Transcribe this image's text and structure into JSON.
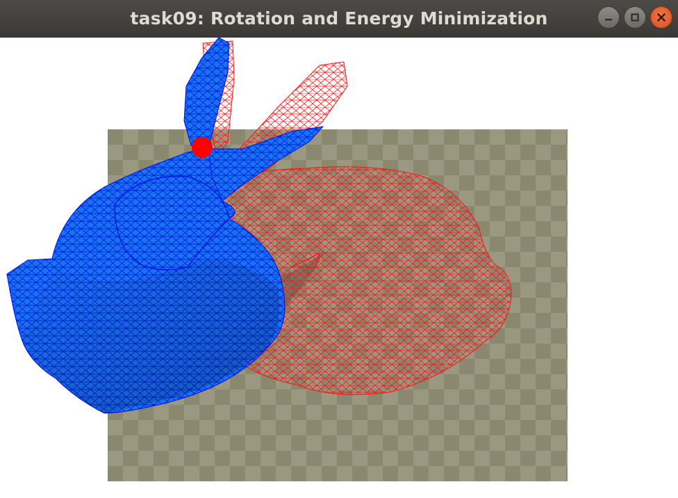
{
  "window": {
    "title": "task09: Rotation and Energy Minimization",
    "controls": {
      "minimize_icon": "minimize-icon",
      "maximize_icon": "maximize-icon",
      "close_icon": "close-icon"
    }
  },
  "scene": {
    "background_color": "#ffffff",
    "floor_colors": [
      "#9a9880",
      "#8a886f"
    ],
    "solid_mesh": {
      "fill": "#1873ee",
      "edge": "#0010e6"
    },
    "wireframe_mesh": {
      "edge": "#ff1010"
    },
    "handle_point": {
      "color": "#ff0000"
    }
  }
}
